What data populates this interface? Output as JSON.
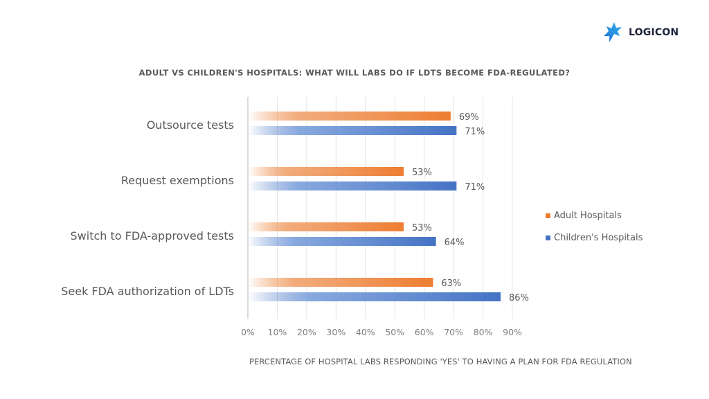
{
  "brand": {
    "name": "LOGICON",
    "logo_icon": "logicon-star-icon"
  },
  "chart_data": {
    "type": "bar",
    "orientation": "horizontal",
    "title": "ADULT VS CHILDREN'S HOSPITALS: WHAT WILL LABS DO IF LDTS BECOME FDA-REGULATED?",
    "xlabel": "PERCENTAGE OF HOSPITAL LABS RESPONDING 'YES' TO HAVING A PLAN FOR FDA REGULATION",
    "ylabel": "",
    "categories": [
      "Outsource tests",
      "Request exemptions",
      "Switch to FDA-approved tests",
      "Seek FDA authorization of LDTs"
    ],
    "series": [
      {
        "name": "Adult Hospitals",
        "color": "#ED7D31",
        "values": [
          69,
          53,
          53,
          63
        ],
        "labels": [
          "69%",
          "53%",
          "53%",
          "63%"
        ]
      },
      {
        "name": "Children's Hospitals",
        "color": "#4472C4",
        "values": [
          71,
          71,
          64,
          86
        ],
        "labels": [
          "71%",
          "71%",
          "64%",
          "86%"
        ]
      }
    ],
    "xlim": [
      0,
      90
    ],
    "xticks": [
      0,
      10,
      20,
      30,
      40,
      50,
      60,
      70,
      80,
      90
    ],
    "xtick_labels": [
      "0%",
      "10%",
      "20%",
      "30%",
      "40%",
      "50%",
      "60%",
      "70%",
      "80%",
      "90%"
    ],
    "grid": true,
    "legend": "right"
  }
}
